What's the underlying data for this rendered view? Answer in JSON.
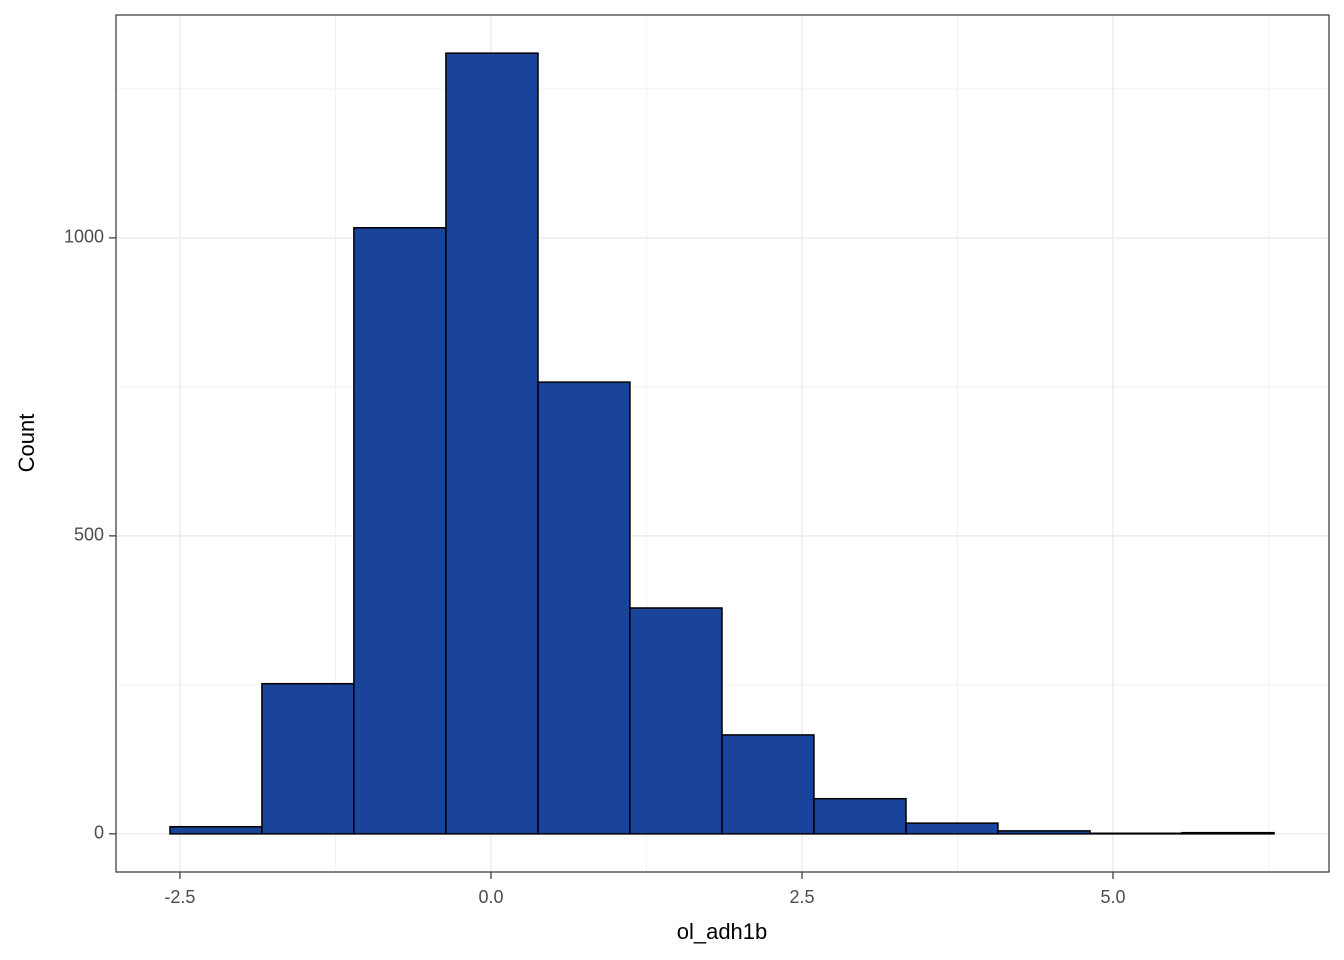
{
  "chart_data": {
    "type": "histogram",
    "x_label": "ol_adh1b",
    "y_label": "Count",
    "bins": [
      -2.58,
      -1.841,
      -1.102,
      -0.362,
      0.378,
      1.117,
      1.857,
      2.596,
      3.336,
      4.075,
      4.815,
      5.554,
      6.294
    ],
    "values": [
      12,
      252,
      1017,
      1310,
      758,
      379,
      166,
      59,
      18,
      5,
      1,
      2
    ],
    "color": "#1a4499",
    "edge_color": "#000000",
    "xlim": [
      -3.014,
      6.736
    ],
    "ylim": [
      -64,
      1374
    ],
    "xticks": [
      -2.5,
      {
        "value": 0,
        "label": "0.0"
      },
      2.5,
      {
        "value": 5,
        "label": "5.0"
      }
    ],
    "yticks": [
      0,
      500,
      1000
    ],
    "grid": true
  }
}
